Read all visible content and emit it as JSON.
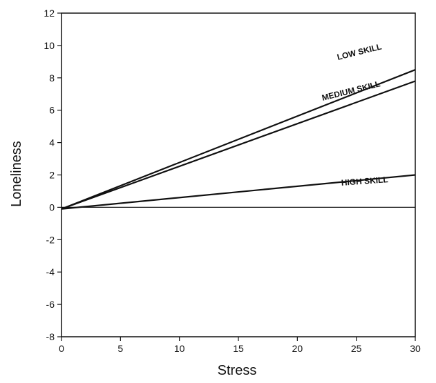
{
  "chart_data": {
    "type": "line",
    "title": "",
    "xlabel": "Stress",
    "ylabel": "Loneliness",
    "xlim": [
      0,
      30
    ],
    "ylim": [
      -8,
      12
    ],
    "xticks": [
      0,
      5,
      10,
      15,
      20,
      25,
      30
    ],
    "yticks": [
      -8,
      -6,
      -4,
      -2,
      0,
      2,
      4,
      6,
      8,
      10,
      12
    ],
    "x": [
      0,
      30
    ],
    "series": [
      {
        "name": "LOW SKILL",
        "values": [
          -0.1,
          8.5
        ]
      },
      {
        "name": "MEDIUM SKILL",
        "values": [
          -0.1,
          7.8
        ]
      },
      {
        "name": "HIGH SKILL",
        "values": [
          -0.1,
          2.0
        ]
      }
    ],
    "reference_line_y": 0,
    "grid": false
  }
}
